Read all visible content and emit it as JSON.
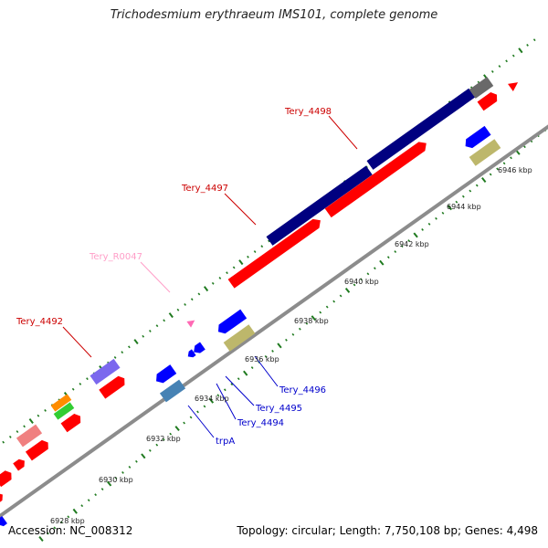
{
  "title": "Trichodesmium erythraeum IMS101, complete genome",
  "footer": {
    "accession": "Accession: NC_008312",
    "stats": "Topology: circular; Length: 7,750,108 bp; Genes: 4,498"
  },
  "colors": {
    "backbone": "#8c8c8c",
    "tick": "#1f7a1f",
    "gene_forward": "#ff0000",
    "gene_navy": "#000080",
    "gene_blue": "#0000ff",
    "gene_khaki": "#bdb76b",
    "gene_steel": "#4682b4",
    "gene_slate": "#7b68ee",
    "gene_gray": "#696969",
    "gene_salmon": "#f08080",
    "gene_orange": "#ff8c00",
    "gene_green": "#32cd32",
    "gene_pink": "#ff69b4",
    "label_red": "#cc0000",
    "label_blue": "#0000cc",
    "label_pink": "#ff9ec8"
  },
  "scale_labels": [
    "6928 kbp",
    "6930 kbp",
    "6932 kbp",
    "6934 kbp",
    "6936 kbp",
    "6938 kbp",
    "6940 kbp",
    "6942 kbp",
    "6944 kbp",
    "6946 kbp"
  ],
  "gene_labels": {
    "tery_4498": "Tery_4498",
    "tery_4497": "Tery_4497",
    "tery_r0047": "Tery_R0047",
    "tery_4492": "Tery_4492",
    "tery_4496": "Tery_4496",
    "tery_4495": "Tery_4495",
    "tery_4494": "Tery_4494",
    "trpa": "trpA"
  }
}
